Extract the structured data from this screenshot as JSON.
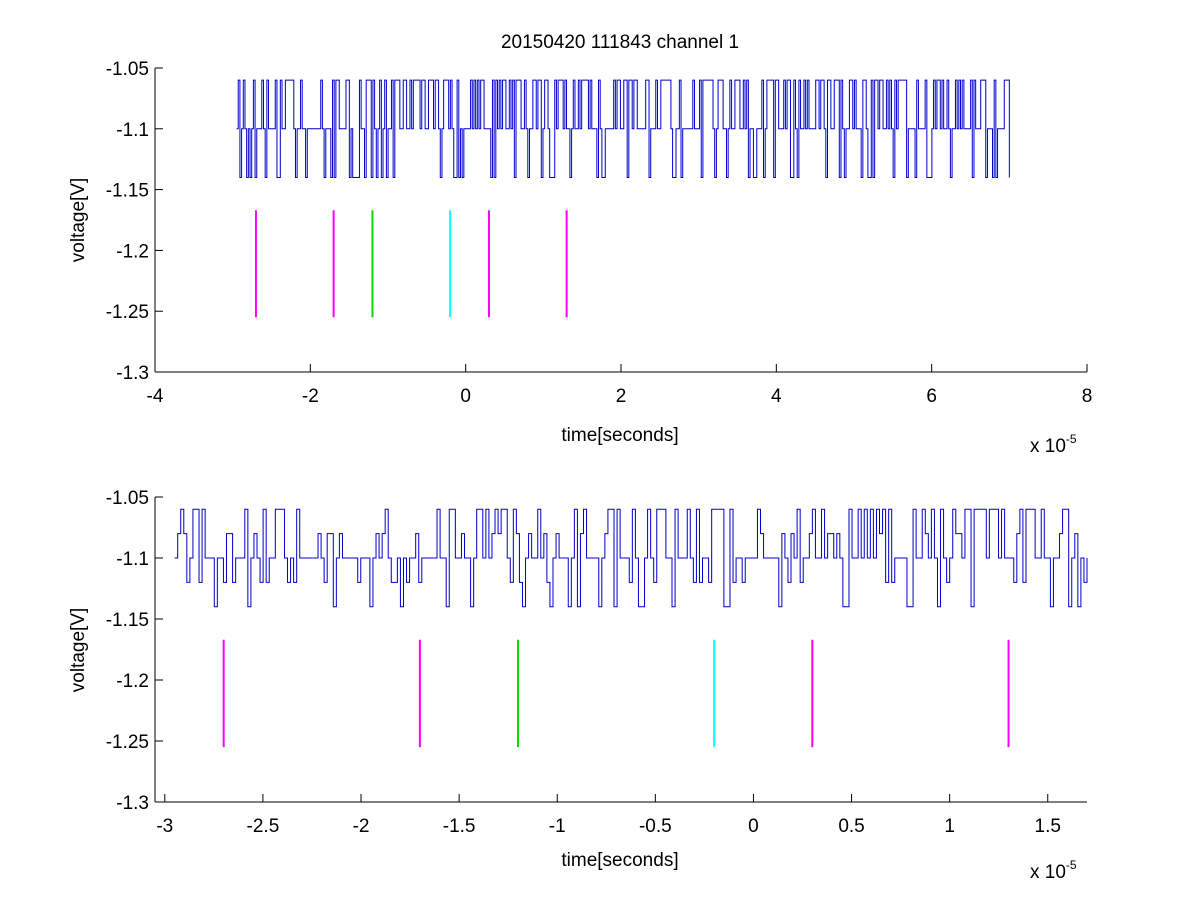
{
  "figure_title": "20150420 111843 channel 1",
  "chart_data": [
    {
      "type": "line",
      "xlabel": "time[seconds]",
      "ylabel": "voltage[V]",
      "x_exponent_label": "x 10",
      "x_exponent_power": "-5",
      "xlim": [
        -4,
        8
      ],
      "ylim": [
        -1.3,
        -1.05
      ],
      "xticks": [
        -4,
        -2,
        0,
        2,
        4,
        6,
        8
      ],
      "xtick_labels": [
        "-4",
        "-2",
        "0",
        "2",
        "4",
        "6",
        "8"
      ],
      "yticks": [
        -1.05,
        -1.1,
        -1.15,
        -1.2,
        -1.25,
        -1.3
      ],
      "ytick_labels": [
        "-1.05",
        "-1.1",
        "-1.15",
        "-1.2",
        "-1.25",
        "-1.3"
      ],
      "signal": {
        "color": "#0000cc",
        "x_range": [
          -2.95,
          7.0
        ],
        "levels": [
          -1.06,
          -1.1,
          -1.14
        ],
        "baseline": -1.1,
        "sample_count": 460,
        "seed": 101
      },
      "markers": [
        {
          "x": -2.7,
          "y_from": -1.167,
          "y_to": -1.255,
          "color": "#ff00ff"
        },
        {
          "x": -1.7,
          "y_from": -1.167,
          "y_to": -1.255,
          "color": "#ff00ff"
        },
        {
          "x": -1.2,
          "y_from": -1.167,
          "y_to": -1.255,
          "color": "#00dd00"
        },
        {
          "x": -0.2,
          "y_from": -1.167,
          "y_to": -1.255,
          "color": "#00ffff"
        },
        {
          "x": 0.3,
          "y_from": -1.167,
          "y_to": -1.255,
          "color": "#ff00ff"
        },
        {
          "x": 1.3,
          "y_from": -1.167,
          "y_to": -1.255,
          "color": "#ff00ff"
        }
      ],
      "grid": false
    },
    {
      "type": "line",
      "xlabel": "time[seconds]",
      "ylabel": "voltage[V]",
      "x_exponent_label": "x 10",
      "x_exponent_power": "-5",
      "xlim": [
        -3.05,
        1.7
      ],
      "ylim": [
        -1.3,
        -1.05
      ],
      "xticks": [
        -3,
        -2.5,
        -2,
        -1.5,
        -1,
        -0.5,
        0,
        0.5,
        1,
        1.5
      ],
      "xtick_labels": [
        "-3",
        "-2.5",
        "-2",
        "-1.5",
        "-1",
        "-0.5",
        "0",
        "0.5",
        "1",
        "1.5"
      ],
      "yticks": [
        -1.05,
        -1.1,
        -1.15,
        -1.2,
        -1.25,
        -1.3
      ],
      "ytick_labels": [
        "-1.05",
        "-1.1",
        "-1.15",
        "-1.2",
        "-1.25",
        "-1.3"
      ],
      "signal": {
        "color": "#0000cc",
        "x_range": [
          -2.95,
          1.7
        ],
        "levels": [
          -1.06,
          -1.08,
          -1.1,
          -1.12,
          -1.14
        ],
        "baseline": -1.1,
        "sample_count": 300,
        "seed": 202
      },
      "markers": [
        {
          "x": -2.7,
          "y_from": -1.167,
          "y_to": -1.255,
          "color": "#ff00ff"
        },
        {
          "x": -1.7,
          "y_from": -1.167,
          "y_to": -1.255,
          "color": "#ff00ff"
        },
        {
          "x": -1.2,
          "y_from": -1.167,
          "y_to": -1.255,
          "color": "#00dd00"
        },
        {
          "x": -0.2,
          "y_from": -1.167,
          "y_to": -1.255,
          "color": "#00ffff"
        },
        {
          "x": 0.3,
          "y_from": -1.167,
          "y_to": -1.255,
          "color": "#ff00ff"
        },
        {
          "x": 1.3,
          "y_from": -1.167,
          "y_to": -1.255,
          "color": "#ff00ff"
        }
      ],
      "grid": false
    }
  ]
}
